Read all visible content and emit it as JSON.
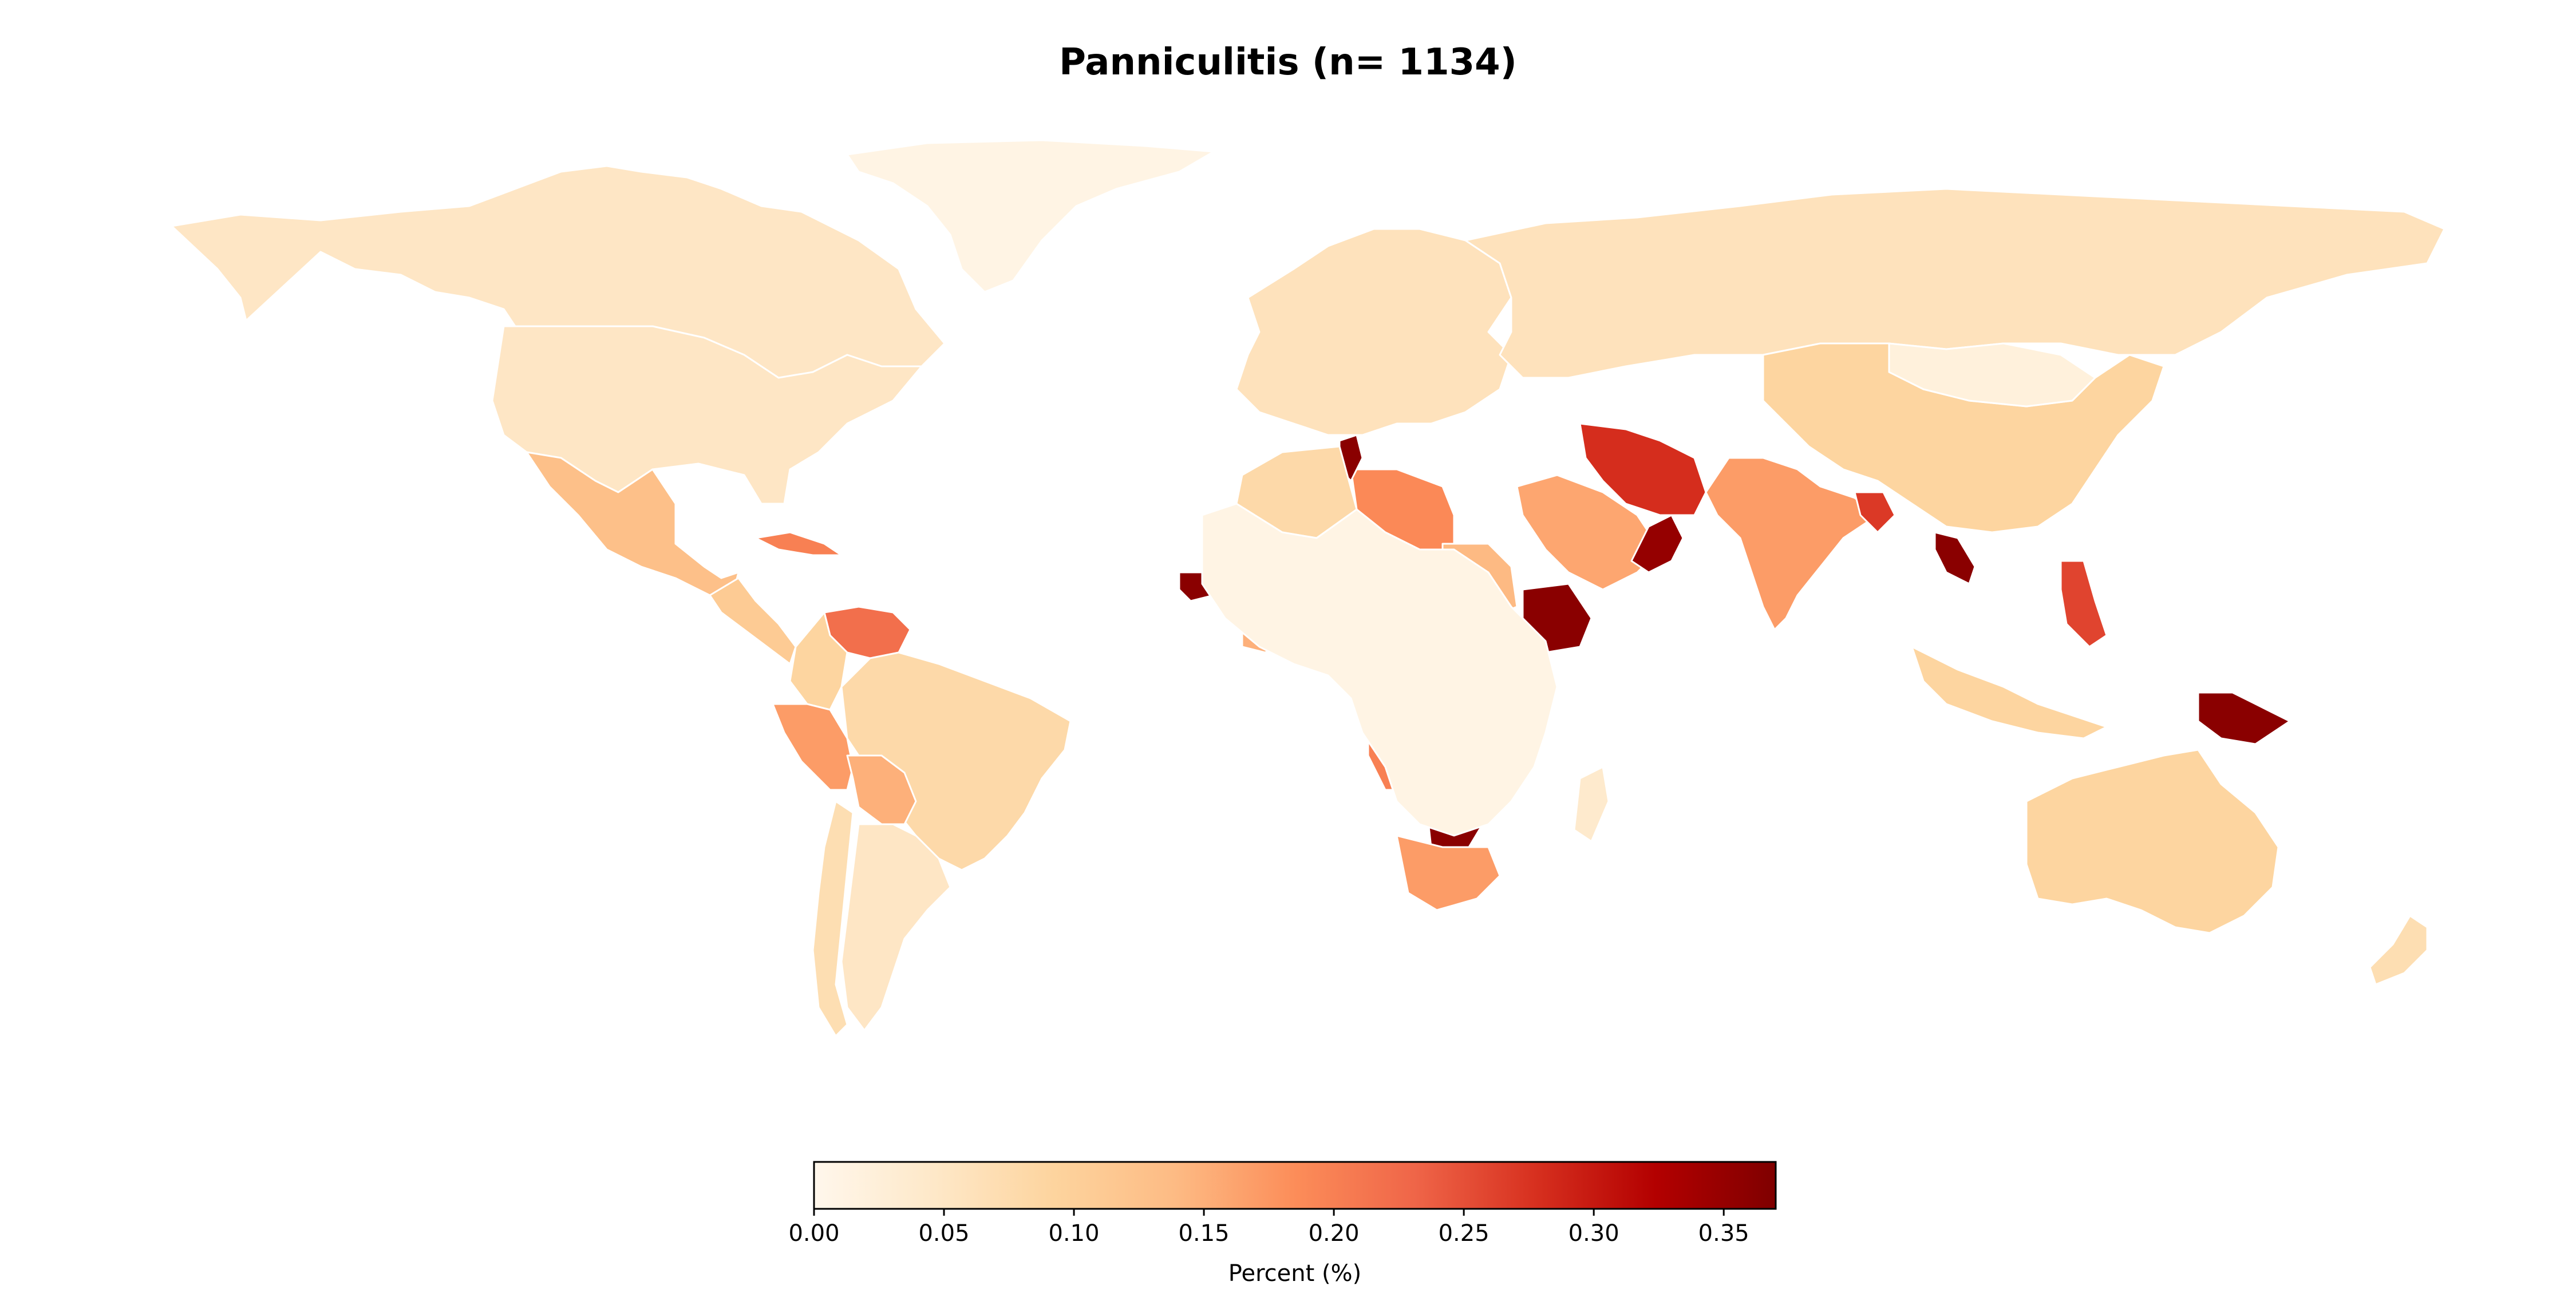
{
  "title": "Panniculitis (n= 1134)",
  "colorbar": {
    "label": "Percent (%)",
    "min": 0.0,
    "max": 0.37,
    "ticks": [
      "0.00",
      "0.05",
      "0.10",
      "0.15",
      "0.20",
      "0.25",
      "0.30",
      "0.35"
    ],
    "tick_values": [
      0.0,
      0.05,
      0.1,
      0.15,
      0.2,
      0.25,
      0.3,
      0.35
    ],
    "colormap": "OrRd",
    "colors": [
      "#fff7ec",
      "#fee8c8",
      "#fdd49e",
      "#fdbb84",
      "#fc8d59",
      "#ef6548",
      "#d7301f",
      "#b30000",
      "#7f0000"
    ]
  },
  "regions": [
    {
      "name": "Canada",
      "value": 0.05
    },
    {
      "name": "United States",
      "value": 0.05
    },
    {
      "name": "Greenland",
      "value": 0.01
    },
    {
      "name": "Mexico",
      "value": 0.13
    },
    {
      "name": "Central America",
      "value": 0.11
    },
    {
      "name": "Cuba",
      "value": 0.2
    },
    {
      "name": "Venezuela",
      "value": 0.22
    },
    {
      "name": "Colombia",
      "value": 0.09
    },
    {
      "name": "Brazil",
      "value": 0.08
    },
    {
      "name": "Peru",
      "value": 0.17
    },
    {
      "name": "Bolivia",
      "value": 0.15
    },
    {
      "name": "Argentina",
      "value": 0.05
    },
    {
      "name": "Chile",
      "value": 0.07
    },
    {
      "name": "Europe",
      "value": 0.06
    },
    {
      "name": "Russia",
      "value": 0.06
    },
    {
      "name": "China",
      "value": 0.09
    },
    {
      "name": "Mongolia",
      "value": 0.02
    },
    {
      "name": "India",
      "value": 0.17
    },
    {
      "name": "Iran",
      "value": 0.28
    },
    {
      "name": "Saudi Arabia",
      "value": 0.16
    },
    {
      "name": "Oman",
      "value": 0.35
    },
    {
      "name": "Libya",
      "value": 0.19
    },
    {
      "name": "Tunisia",
      "value": 0.36
    },
    {
      "name": "Algeria",
      "value": 0.08
    },
    {
      "name": "Nigeria",
      "value": 0.21
    },
    {
      "name": "Ethiopia",
      "value": 0.36
    },
    {
      "name": "Sudan",
      "value": 0.14
    },
    {
      "name": "Angola",
      "value": 0.2
    },
    {
      "name": "Botswana",
      "value": 0.36
    },
    {
      "name": "South Africa",
      "value": 0.17
    },
    {
      "name": "Senegal",
      "value": 0.36
    },
    {
      "name": "Ghana",
      "value": 0.15
    },
    {
      "name": "Cameroon",
      "value": 0.36
    },
    {
      "name": "Laos",
      "value": 0.36
    },
    {
      "name": "Bangladesh",
      "value": 0.27
    },
    {
      "name": "Philippines",
      "value": 0.26
    },
    {
      "name": "Papua New Guinea",
      "value": 0.36
    },
    {
      "name": "Indonesia",
      "value": 0.09
    },
    {
      "name": "Australia",
      "value": 0.09
    },
    {
      "name": "New Zealand",
      "value": 0.07
    },
    {
      "name": "Madagascar",
      "value": 0.04
    },
    {
      "name": "Central Africa",
      "value": 0.01
    }
  ]
}
